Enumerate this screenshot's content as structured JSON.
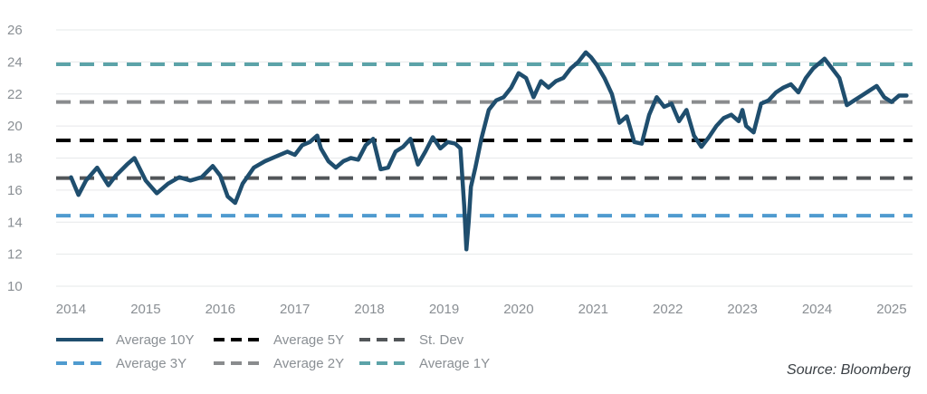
{
  "chart_data": {
    "type": "line",
    "ylim": [
      10,
      26
    ],
    "yticks": [
      "10",
      "12",
      "14",
      "16",
      "18",
      "20",
      "22",
      "24",
      "26"
    ],
    "xlim": [
      2013.8,
      2025.28
    ],
    "xticks": [
      "2014",
      "2015",
      "2016",
      "2017",
      "2018",
      "2019",
      "2020",
      "2021",
      "2022",
      "2023",
      "2024",
      "2025"
    ],
    "series": [
      {
        "name": "Average 10Y",
        "style": "solid",
        "color": "#1f4e6e",
        "x": [
          2014.0,
          2014.1,
          2014.2,
          2014.35,
          2014.5,
          2014.6,
          2014.75,
          2014.85,
          2015.0,
          2015.15,
          2015.3,
          2015.45,
          2015.6,
          2015.75,
          2015.9,
          2016.0,
          2016.1,
          2016.2,
          2016.3,
          2016.45,
          2016.6,
          2016.75,
          2016.9,
          2017.0,
          2017.1,
          2017.2,
          2017.3,
          2017.35,
          2017.45,
          2017.55,
          2017.65,
          2017.75,
          2017.85,
          2017.95,
          2018.05,
          2018.15,
          2018.25,
          2018.35,
          2018.45,
          2018.55,
          2018.65,
          2018.75,
          2018.85,
          2018.95,
          2019.05,
          2019.15,
          2019.22,
          2019.27,
          2019.3,
          2019.33,
          2019.36,
          2019.42,
          2019.5,
          2019.6,
          2019.7,
          2019.8,
          2019.9,
          2020.0,
          2020.1,
          2020.2,
          2020.3,
          2020.4,
          2020.5,
          2020.6,
          2020.7,
          2020.8,
          2020.9,
          2020.97,
          2021.05,
          2021.15,
          2021.25,
          2021.35,
          2021.45,
          2021.55,
          2021.65,
          2021.75,
          2021.85,
          2021.95,
          2022.05,
          2022.15,
          2022.25,
          2022.35,
          2022.45,
          2022.55,
          2022.65,
          2022.75,
          2022.85,
          2022.95,
          2023.0,
          2023.05,
          2023.15,
          2023.25,
          2023.35,
          2023.45,
          2023.55,
          2023.65,
          2023.75,
          2023.85,
          2023.95,
          2024.05,
          2024.1,
          2024.2,
          2024.3,
          2024.4,
          2024.5,
          2024.6,
          2024.7,
          2024.8,
          2024.9,
          2025.0,
          2025.1,
          2025.2
        ],
        "y": [
          16.8,
          15.7,
          16.6,
          17.4,
          16.3,
          16.9,
          17.6,
          18.0,
          16.6,
          15.8,
          16.4,
          16.8,
          16.6,
          16.8,
          17.5,
          16.9,
          15.6,
          15.2,
          16.4,
          17.4,
          17.8,
          18.1,
          18.4,
          18.2,
          18.8,
          19.0,
          19.4,
          18.6,
          17.8,
          17.4,
          17.8,
          18.0,
          17.9,
          18.8,
          19.2,
          17.3,
          17.4,
          18.4,
          18.7,
          19.2,
          17.6,
          18.4,
          19.3,
          18.6,
          19.0,
          18.9,
          18.6,
          15.0,
          12.3,
          14.0,
          16.2,
          17.4,
          19.2,
          21.0,
          21.6,
          21.8,
          22.4,
          23.3,
          23.0,
          21.8,
          22.8,
          22.4,
          22.8,
          23.0,
          23.6,
          24.0,
          24.6,
          24.3,
          23.8,
          23.0,
          22.0,
          20.2,
          20.6,
          19.0,
          18.9,
          20.7,
          21.8,
          21.2,
          21.4,
          20.3,
          21.0,
          19.4,
          18.7,
          19.3,
          20.0,
          20.5,
          20.7,
          20.3,
          21.0,
          20.0,
          19.6,
          21.4,
          21.6,
          22.1,
          22.4,
          22.6,
          22.1,
          23.0,
          23.6,
          24.0,
          24.2,
          23.6,
          23.0,
          21.3,
          21.6,
          21.9,
          22.2,
          22.5,
          21.8,
          21.5,
          21.9,
          21.9
        ]
      },
      {
        "name": "Average 5Y",
        "style": "dashed",
        "color": "#000000",
        "value": 19.1
      },
      {
        "name": "St. Dev",
        "style": "dashed",
        "color": "#525659",
        "value": 16.75
      },
      {
        "name": "Average 3Y",
        "style": "dashed",
        "color": "#4f9bcf",
        "value": 14.4
      },
      {
        "name": "Average 2Y",
        "style": "dashed",
        "color": "#8a8c8e",
        "value": 21.5
      },
      {
        "name": "Average 1Y",
        "style": "dashed",
        "color": "#5ca3a8",
        "value": 23.85
      }
    ],
    "legend_location": "bottom-left"
  },
  "legend": [
    {
      "name": "Average 10Y",
      "color": "#1f4e6e",
      "style": "solid"
    },
    {
      "name": "Average 5Y",
      "color": "#000000",
      "style": "dashed"
    },
    {
      "name": "St. Dev",
      "color": "#525659",
      "style": "dashed"
    },
    {
      "name": "Average 3Y",
      "color": "#4f9bcf",
      "style": "dashed"
    },
    {
      "name": "Average 2Y",
      "color": "#8a8c8e",
      "style": "dashed"
    },
    {
      "name": "Average 1Y",
      "color": "#5ca3a8",
      "style": "dashed"
    }
  ],
  "source": "Source: Bloomberg"
}
